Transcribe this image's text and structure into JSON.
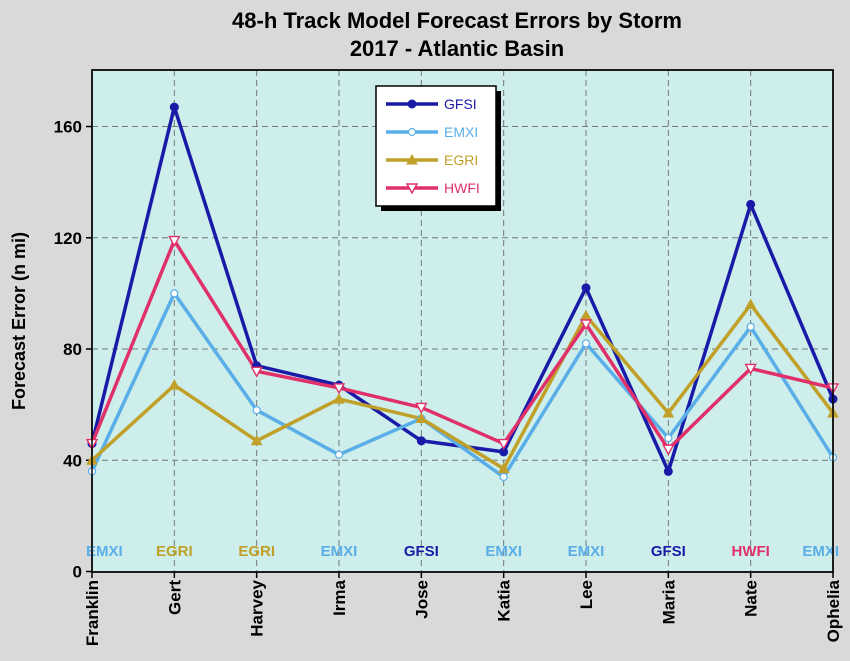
{
  "chart_data": {
    "type": "line",
    "title": "48-h Track Model Forecast Errors by Storm",
    "subtitle": "2017 - Atlantic Basin",
    "xlabel": "",
    "ylabel": "Forecast Error (n mi)",
    "ylim": [
      0,
      180
    ],
    "yticks": [
      0,
      40,
      80,
      120,
      160
    ],
    "grid": true,
    "legend_position": "top-center",
    "background_color": "#cdeeea",
    "categories": [
      "Franklin",
      "Gert",
      "Harvey",
      "Irma",
      "Jose",
      "Katia",
      "Lee",
      "Maria",
      "Nate",
      "Ophelia"
    ],
    "series": [
      {
        "name": "GFSI",
        "color": "#1a1aa8",
        "marker": "circle",
        "values": [
          46,
          167,
          74,
          67,
          47,
          43,
          102,
          36,
          132,
          62
        ]
      },
      {
        "name": "EMXI",
        "color": "#5aaee8",
        "marker": "circle-open",
        "values": [
          36,
          100,
          58,
          42,
          55,
          34,
          82,
          48,
          88,
          41
        ]
      },
      {
        "name": "EGRI",
        "color": "#c0a028",
        "marker": "triangle-up",
        "values": [
          40,
          67,
          47,
          62,
          55,
          37,
          92,
          57,
          96,
          57
        ]
      },
      {
        "name": "HWFI",
        "color": "#e0306a",
        "marker": "triangle-down",
        "values": [
          46,
          119,
          72,
          66,
          59,
          46,
          89,
          44,
          73,
          66
        ]
      }
    ],
    "best_model_labels": [
      "EMXI",
      "EGRI",
      "EGRI",
      "EMXI",
      "GFSI",
      "EMXI",
      "EMXI",
      "GFSI",
      "HWFI",
      "EMXI"
    ]
  }
}
